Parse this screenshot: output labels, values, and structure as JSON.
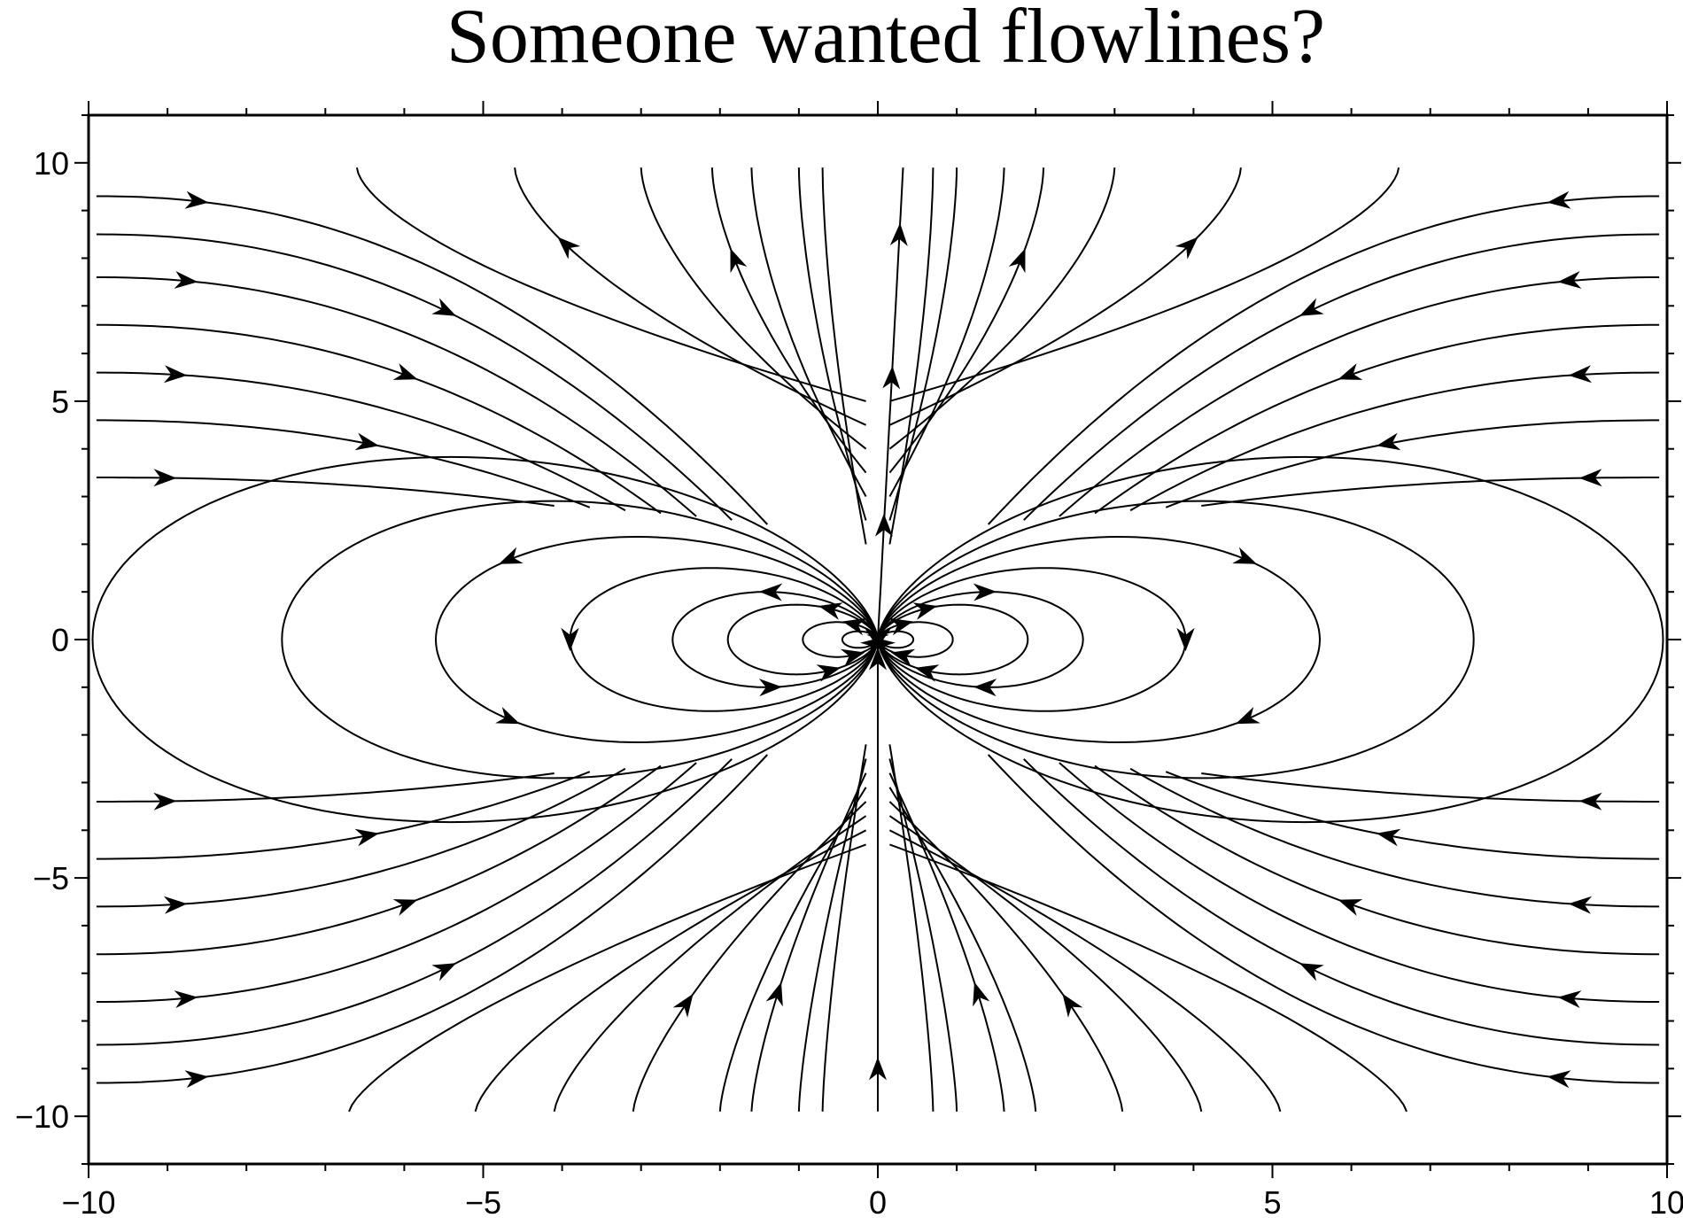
{
  "chart_data": {
    "type": "streamline",
    "title": "Someone wanted flowlines?",
    "xlabel": "",
    "ylabel": "",
    "xlim": [
      -10,
      10
    ],
    "ylim": [
      -11,
      11
    ],
    "x_major_ticks": [
      -10,
      -5,
      0,
      5,
      10
    ],
    "y_major_ticks": [
      -10,
      -5,
      0,
      5,
      10
    ],
    "x_tick_labels": [
      "−10",
      "−5",
      "0",
      "5",
      "10"
    ],
    "y_tick_labels": [
      "−10",
      "−5",
      "0",
      "5",
      "10"
    ],
    "x_minor_step": 1,
    "y_minor_step": 1,
    "grid": false,
    "legend": "none",
    "field": {
      "description_model": "dipole",
      "dipole_center": [
        0,
        0
      ],
      "flow_direction": "out of top (+y), returns through bottom",
      "line_color": "#000000"
    },
    "streamlines": {
      "loop_extents_x": [
        0.45,
        0.95,
        1.9,
        2.6,
        3.9,
        5.6,
        7.55,
        9.95
      ],
      "loop_arrow_fraction": [
        0.12,
        0.22,
        0.22,
        0.28,
        0.5,
        0.62
      ],
      "open_lines_left_y": [
        9.3,
        8.5,
        7.6,
        6.6,
        5.6,
        4.6,
        3.4
      ],
      "open_lines_top_x": [
        0.7,
        1.0,
        1.6,
        2.1,
        3.0,
        4.6,
        6.6
      ],
      "open_lines_bottom_x": [
        0.7,
        1.0,
        1.6,
        2.0,
        3.1,
        4.1,
        5.1,
        6.7
      ],
      "axis_line_arrows_y": [
        -9,
        -0.4,
        2.4
      ],
      "upper_spoke_x_top": 0.32,
      "upper_spoke_arrows_y": [
        5.5,
        8.5
      ]
    }
  }
}
